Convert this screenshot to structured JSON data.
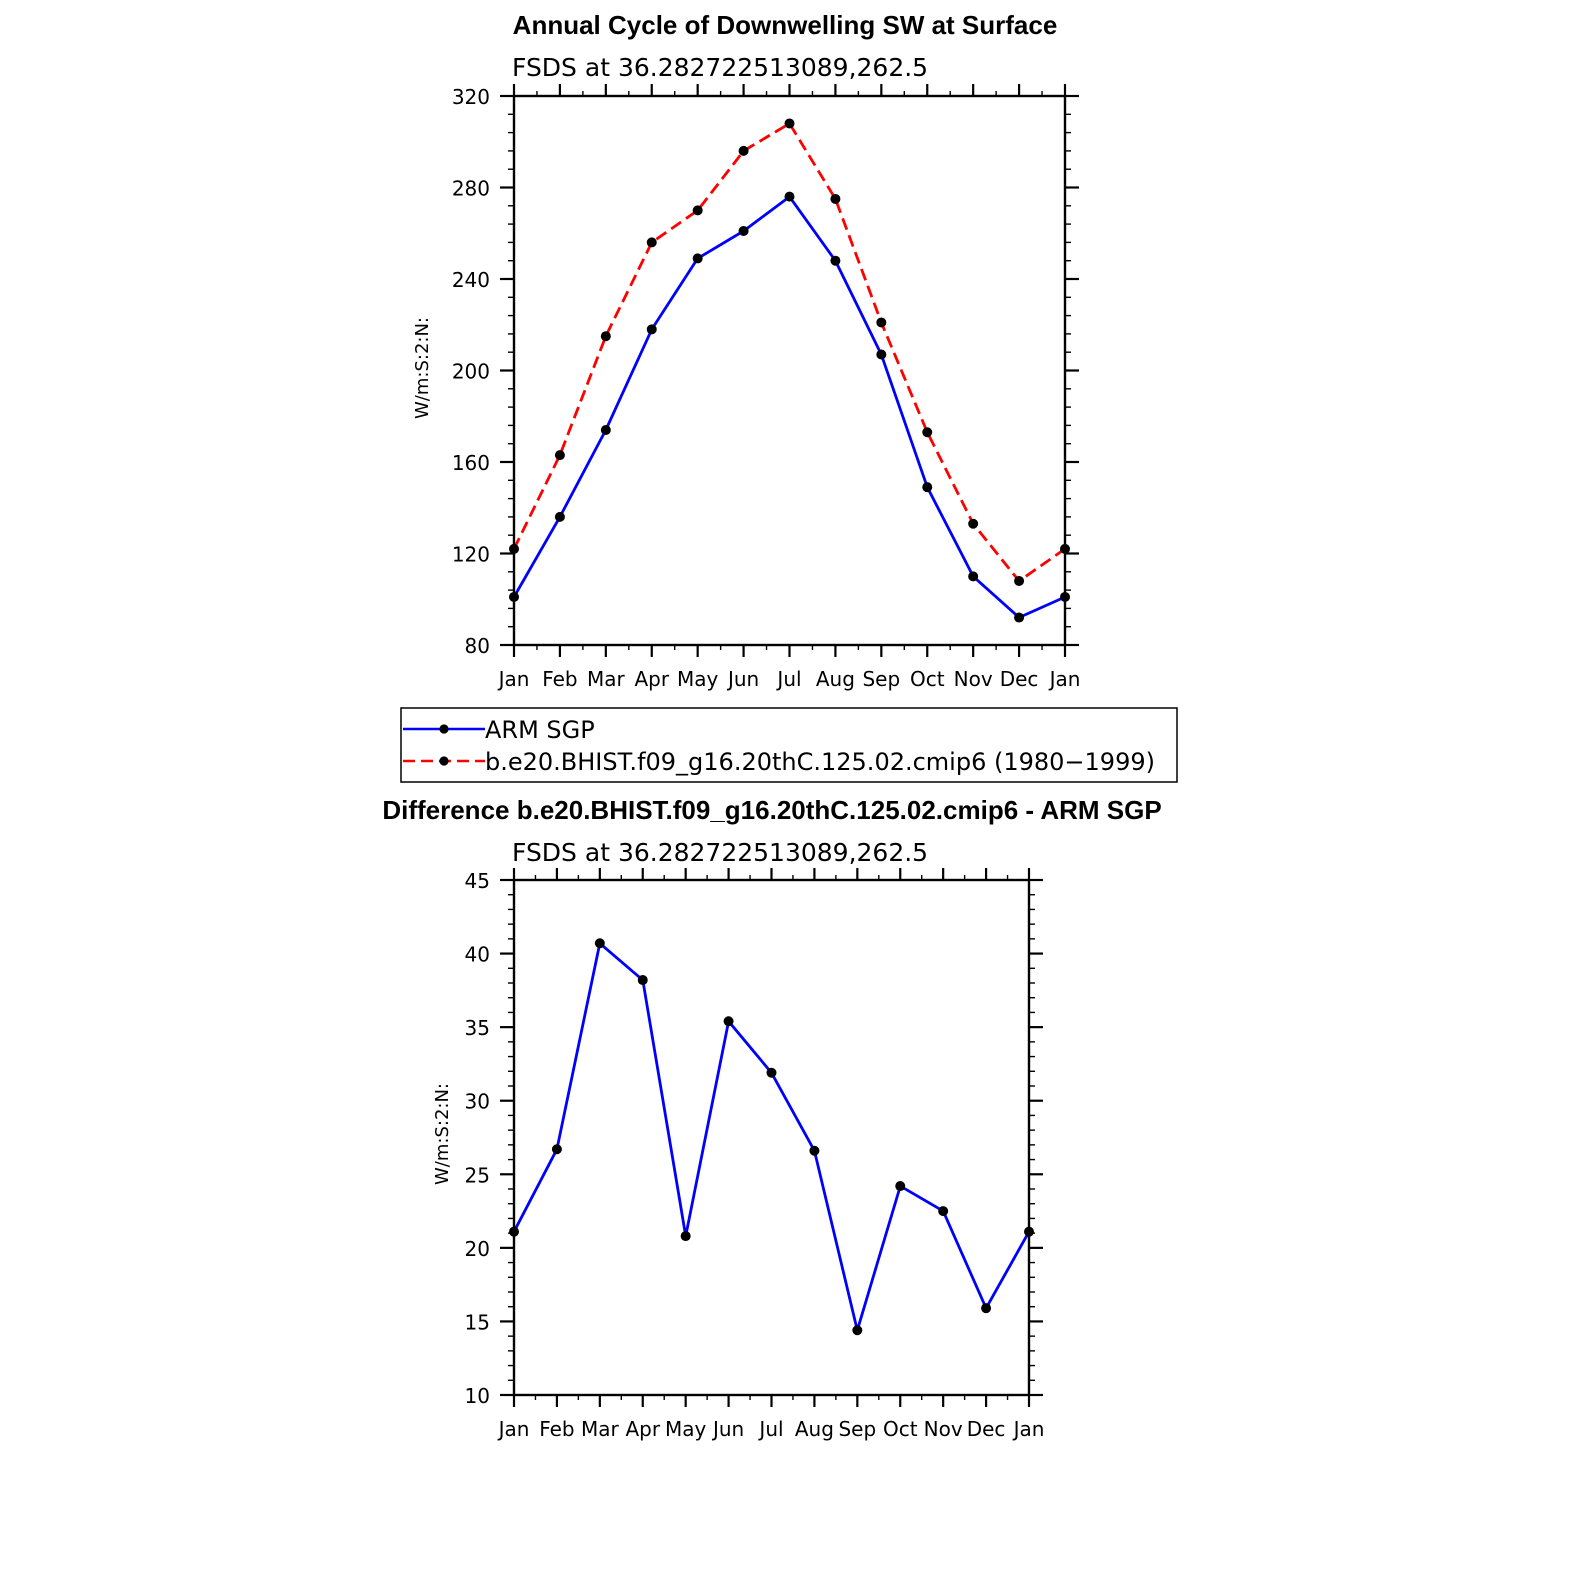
{
  "chart_data": [
    {
      "type": "line",
      "title": "Annual Cycle of Downwelling SW at Surface",
      "subtitle": "FSDS at 36.282722513089,262.5",
      "ylabel": "W/m:S:2:N:",
      "xlabel": "",
      "ylim": [
        80,
        320
      ],
      "yticks": [
        80,
        120,
        160,
        200,
        240,
        280,
        320
      ],
      "categories": [
        "Jan",
        "Feb",
        "Mar",
        "Apr",
        "May",
        "Jun",
        "Jul",
        "Aug",
        "Sep",
        "Oct",
        "Nov",
        "Dec",
        "Jan"
      ],
      "grid": false,
      "legend_position": "bottom",
      "series": [
        {
          "name": "ARM SGP",
          "color": "#0000ff",
          "style": "solid",
          "marker": "dot",
          "values": [
            101,
            136,
            174,
            218,
            249,
            261,
            276,
            248,
            207,
            149,
            110,
            92,
            101
          ]
        },
        {
          "name": "b.e20.BHIST.f09_g16.20thC.125.02.cmip6 (1980−1999)",
          "color": "#ff0000",
          "style": "dashed",
          "marker": "dot",
          "values": [
            122,
            163,
            215,
            256,
            270,
            296,
            308,
            275,
            221,
            173,
            133,
            108,
            122
          ]
        }
      ]
    },
    {
      "type": "line",
      "title": "Difference b.e20.BHIST.f09_g16.20thC.125.02.cmip6 - ARM SGP",
      "subtitle": "FSDS at 36.282722513089,262.5",
      "ylabel": "W/m:S:2:N:",
      "xlabel": "",
      "ylim": [
        10,
        45
      ],
      "yticks": [
        10,
        15,
        20,
        25,
        30,
        35,
        40,
        45
      ],
      "categories": [
        "Jan",
        "Feb",
        "Mar",
        "Apr",
        "May",
        "Jun",
        "Jul",
        "Aug",
        "Sep",
        "Oct",
        "Nov",
        "Dec",
        "Jan"
      ],
      "grid": false,
      "series": [
        {
          "color": "#0000ff",
          "style": "solid",
          "marker": "dot",
          "values": [
            21.1,
            26.7,
            40.7,
            38.2,
            20.8,
            35.4,
            31.9,
            26.6,
            14.4,
            24.2,
            22.5,
            15.9,
            21.1
          ]
        }
      ]
    }
  ]
}
